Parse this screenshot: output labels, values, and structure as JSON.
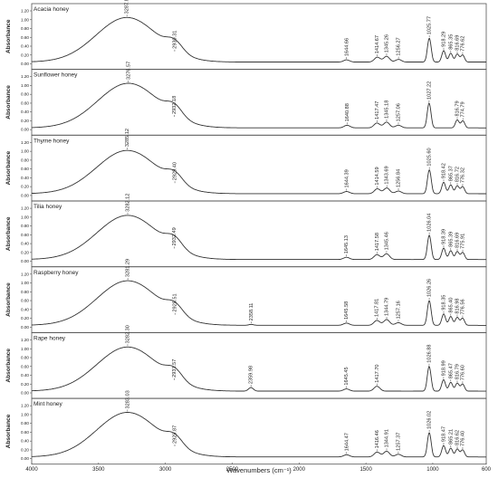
{
  "chart_data": {
    "type": "line",
    "xlabel": "Wavenumbers (cm⁻¹)",
    "ylabel": "Absorbance",
    "xlim": [
      4000,
      600
    ],
    "x_reversed": true,
    "x_ticks": [
      "4000",
      "3500",
      "3000",
      "2500",
      "2000",
      "1500",
      "1000",
      "600"
    ],
    "y_ticks": [
      "0.00",
      "0.20",
      "0.40",
      "0.60",
      "0.80",
      "1.00",
      "1.20"
    ],
    "ylim": [
      0,
      1.2
    ],
    "line_color": "#333333",
    "panels": [
      {
        "name": "Acacia honey",
        "peaks": [
          {
            "x": 3287.86,
            "y": 1.05,
            "label": "3287.86"
          },
          {
            "x": 2930.31,
            "y": 0.26,
            "label": "2930.31"
          },
          {
            "x": 1644.66,
            "y": 0.09,
            "label": "1644.66"
          },
          {
            "x": 1414.67,
            "y": 0.15,
            "label": "1414.67"
          },
          {
            "x": 1345.26,
            "y": 0.17,
            "label": "1345.26"
          },
          {
            "x": 1256.27,
            "y": 0.1,
            "label": "1256.27"
          },
          {
            "x": 1025.77,
            "y": 0.58,
            "label": "1025.77"
          },
          {
            "x": 918.29,
            "y": 0.3,
            "label": "918.29"
          },
          {
            "x": 865.35,
            "y": 0.24,
            "label": "865.35"
          },
          {
            "x": 816.69,
            "y": 0.22,
            "label": "816.69"
          },
          {
            "x": 776.62,
            "y": 0.2,
            "label": "776.62"
          }
        ]
      },
      {
        "name": "Sunflower honey",
        "peaks": [
          {
            "x": 3276.57,
            "y": 1.05,
            "label": "3276.57"
          },
          {
            "x": 2932.18,
            "y": 0.27,
            "label": "2932.18"
          },
          {
            "x": 1640.88,
            "y": 0.1,
            "label": "1640.88"
          },
          {
            "x": 1417.47,
            "y": 0.15,
            "label": "1417.47"
          },
          {
            "x": 1345.18,
            "y": 0.17,
            "label": "1345.18"
          },
          {
            "x": 1257.06,
            "y": 0.1,
            "label": "1257.06"
          },
          {
            "x": 1027.22,
            "y": 0.6,
            "label": "1027.22"
          },
          {
            "x": 816.79,
            "y": 0.22,
            "label": "816.79"
          },
          {
            "x": 774.79,
            "y": 0.2,
            "label": "774.79"
          }
        ]
      },
      {
        "name": "Thyme honey",
        "peaks": [
          {
            "x": 3285.12,
            "y": 1.02,
            "label": "3285.12"
          },
          {
            "x": 2929.4,
            "y": 0.26,
            "label": "2929.40"
          },
          {
            "x": 1644.39,
            "y": 0.09,
            "label": "1644.39"
          },
          {
            "x": 1414.59,
            "y": 0.15,
            "label": "1414.59"
          },
          {
            "x": 1343.69,
            "y": 0.17,
            "label": "1343.69"
          },
          {
            "x": 1256.84,
            "y": 0.1,
            "label": "1256.84"
          },
          {
            "x": 1025.6,
            "y": 0.58,
            "label": "1025.60"
          },
          {
            "x": 918.42,
            "y": 0.3,
            "label": "918.42"
          },
          {
            "x": 865.37,
            "y": 0.24,
            "label": "865.37"
          },
          {
            "x": 816.72,
            "y": 0.22,
            "label": "816.72"
          },
          {
            "x": 776.32,
            "y": 0.2,
            "label": "776.32"
          }
        ]
      },
      {
        "name": "Tilia honey",
        "peaks": [
          {
            "x": 3282.12,
            "y": 1.04,
            "label": "3282.12"
          },
          {
            "x": 2932.49,
            "y": 0.27,
            "label": "2932.49"
          },
          {
            "x": 1645.13,
            "y": 0.09,
            "label": "1645.13"
          },
          {
            "x": 1417.58,
            "y": 0.15,
            "label": "1417.58"
          },
          {
            "x": 1345.46,
            "y": 0.17,
            "label": "1345.46"
          },
          {
            "x": 1026.04,
            "y": 0.59,
            "label": "1026.04"
          },
          {
            "x": 918.39,
            "y": 0.3,
            "label": "918.39"
          },
          {
            "x": 865.39,
            "y": 0.24,
            "label": "865.39"
          },
          {
            "x": 816.69,
            "y": 0.22,
            "label": "816.69"
          },
          {
            "x": 775.91,
            "y": 0.2,
            "label": "775.91"
          }
        ]
      },
      {
        "name": "Raspberry honey",
        "peaks": [
          {
            "x": 3281.29,
            "y": 1.05,
            "label": "3281.29"
          },
          {
            "x": 2928.51,
            "y": 0.26,
            "label": "2928.51"
          },
          {
            "x": 2358.11,
            "y": 0.06,
            "label": "2358.11"
          },
          {
            "x": 1645.58,
            "y": 0.09,
            "label": "1645.58"
          },
          {
            "x": 1417.81,
            "y": 0.15,
            "label": "1417.81"
          },
          {
            "x": 1344.79,
            "y": 0.17,
            "label": "1344.79"
          },
          {
            "x": 1257.16,
            "y": 0.1,
            "label": "1257.16"
          },
          {
            "x": 1026.26,
            "y": 0.6,
            "label": "1026.26"
          },
          {
            "x": 918.35,
            "y": 0.3,
            "label": "918.35"
          },
          {
            "x": 865.4,
            "y": 0.24,
            "label": "865.40"
          },
          {
            "x": 816.98,
            "y": 0.22,
            "label": "816.98"
          },
          {
            "x": 776.56,
            "y": 0.2,
            "label": "776.56"
          }
        ]
      },
      {
        "name": "Rape honey",
        "peaks": [
          {
            "x": 3282.3,
            "y": 1.04,
            "label": "3282.30"
          },
          {
            "x": 2931.57,
            "y": 0.27,
            "label": "2931.57"
          },
          {
            "x": 2359.98,
            "y": 0.12,
            "label": "2359.98"
          },
          {
            "x": 1645.45,
            "y": 0.09,
            "label": "1645.45"
          },
          {
            "x": 1417.7,
            "y": 0.15,
            "label": "1417.70"
          },
          {
            "x": 1026.88,
            "y": 0.6,
            "label": "1026.88"
          },
          {
            "x": 918.99,
            "y": 0.3,
            "label": "918.99"
          },
          {
            "x": 865.47,
            "y": 0.24,
            "label": "865.47"
          },
          {
            "x": 816.79,
            "y": 0.22,
            "label": "816.79"
          },
          {
            "x": 776.6,
            "y": 0.2,
            "label": "776.60"
          }
        ]
      },
      {
        "name": "Mint honey",
        "peaks": [
          {
            "x": 3283.03,
            "y": 1.05,
            "label": "3283.03"
          },
          {
            "x": 2929.87,
            "y": 0.26,
            "label": "2929.87"
          },
          {
            "x": 1644.47,
            "y": 0.09,
            "label": "1644.47"
          },
          {
            "x": 1416.46,
            "y": 0.15,
            "label": "1416.46"
          },
          {
            "x": 1344.91,
            "y": 0.17,
            "label": "1344.91"
          },
          {
            "x": 1257.37,
            "y": 0.1,
            "label": "1257.37"
          },
          {
            "x": 1026.02,
            "y": 0.59,
            "label": "1026.02"
          },
          {
            "x": 918.47,
            "y": 0.3,
            "label": "918.47"
          },
          {
            "x": 865.21,
            "y": 0.24,
            "label": "865.21"
          },
          {
            "x": 816.62,
            "y": 0.22,
            "label": "816.62"
          },
          {
            "x": 776.4,
            "y": 0.2,
            "label": "776.40"
          }
        ]
      }
    ]
  }
}
